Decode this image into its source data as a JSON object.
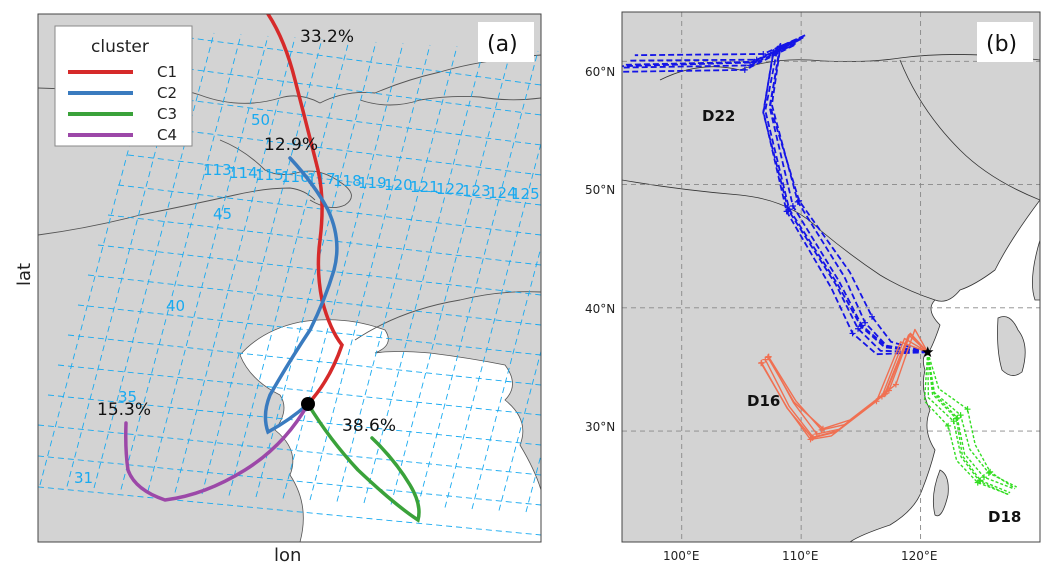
{
  "colors": {
    "land": "#d3d3d3",
    "sea": "#ffffff",
    "grid_blue": "#19aaf0",
    "C1": "#d62a2a",
    "C2": "#3a7bbf",
    "C3": "#3aa23a",
    "C4": "#9c48a8",
    "D22": "#1414e6",
    "D16": "#f07052",
    "D18": "#33dd22"
  },
  "chart_data": [
    {
      "panel": "(a)",
      "type": "line",
      "xlabel": "lon",
      "ylabel": "lat",
      "legend": {
        "title": "cluster",
        "placement": "top-left",
        "entries": [
          "C1",
          "C2",
          "C3",
          "C4"
        ]
      },
      "grid_labels": [
        "50",
        "45",
        "40",
        "35",
        "31"
      ],
      "grid_top_labels": [
        "113",
        "114",
        "115",
        "116",
        "117",
        "118",
        "119",
        "120",
        "121",
        "122",
        "123",
        "124",
        "125"
      ],
      "series": [
        {
          "name": "C1",
          "percent": "33.2%"
        },
        {
          "name": "C2",
          "percent": "12.9%"
        },
        {
          "name": "C3",
          "percent": "38.6%"
        },
        {
          "name": "C4",
          "percent": "15.3%"
        }
      ]
    },
    {
      "panel": "(b)",
      "type": "line",
      "xlabel": "",
      "ylabel": "",
      "xlim": [
        95,
        130
      ],
      "ylim": [
        21,
        64
      ],
      "xticks": [
        "100°E",
        "110°E",
        "120°E"
      ],
      "yticks": [
        "30°N",
        "40°N",
        "50°N",
        "60°N"
      ],
      "grid": true,
      "series": [
        {
          "name": "D22",
          "start": [
            120.6,
            36.4
          ],
          "path": [
            [
              120.6,
              36.4
            ],
            [
              117,
              36.8
            ],
            [
              115,
              38.5
            ],
            [
              113,
              42
            ],
            [
              109,
              48
            ],
            [
              107,
              56
            ],
            [
              108,
              61
            ],
            [
              110,
              61.8
            ],
            [
              106,
              59.9
            ],
            [
              95,
              59.6
            ]
          ]
        },
        {
          "name": "D16",
          "start": [
            120.6,
            36.4
          ],
          "path": [
            [
              120.6,
              36.4
            ],
            [
              119,
              37.8
            ],
            [
              117,
              33
            ],
            [
              113,
              30
            ],
            [
              111,
              29.5
            ],
            [
              109,
              32
            ],
            [
              107,
              35.8
            ]
          ]
        },
        {
          "name": "D18",
          "start": [
            120.6,
            36.4
          ],
          "path": [
            [
              120.6,
              36.4
            ],
            [
              121,
              33
            ],
            [
              123,
              31
            ],
            [
              123.5,
              28
            ],
            [
              125,
              26
            ],
            [
              127.5,
              25
            ]
          ]
        }
      ]
    }
  ]
}
